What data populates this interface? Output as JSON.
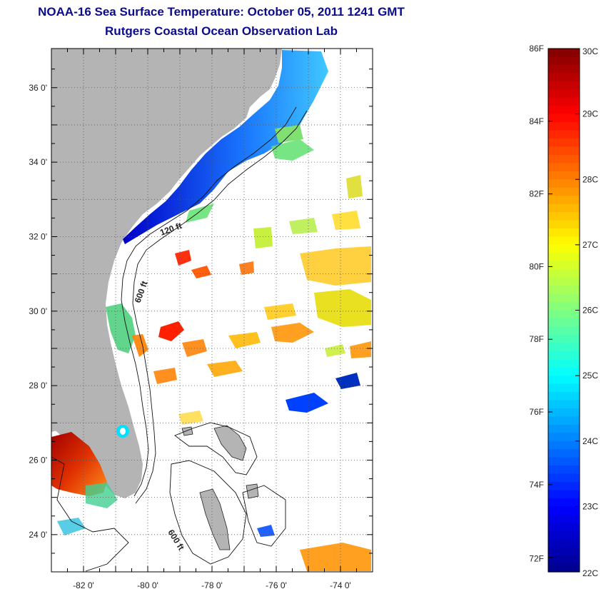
{
  "title": "NOAA-16 Sea Surface Temperature:  October 05, 2011 1241 GMT",
  "subtitle": "Rutgers Coastal Ocean Observation Lab",
  "map": {
    "lat_ticks": [
      "36 0'",
      "34 0'",
      "32 0'",
      "30 0'",
      "28 0'",
      "26 0'",
      "24 0'"
    ],
    "lon_ticks": [
      "-82 0'",
      "-80 0'",
      "-78 0'",
      "-76 0'",
      "-74 0'"
    ],
    "isobath_labels": [
      "120 ft",
      "600 ft",
      "600 ft"
    ],
    "colors": {
      "land": "#b4b4b4",
      "ocean": "#ffffff",
      "grid": "#555555"
    }
  },
  "colorbar": {
    "celsius_labels": [
      "30C",
      "29C",
      "28C",
      "27C",
      "26C",
      "25C",
      "24C",
      "23C",
      "22C"
    ],
    "fahrenheit_labels": [
      "86F",
      "84F",
      "82F",
      "80F",
      "78F",
      "76F",
      "74F",
      "72F"
    ],
    "range_c": [
      22,
      30
    ],
    "colors": [
      "#00008c",
      "#0000ff",
      "#0080ff",
      "#00ffff",
      "#80ff80",
      "#ffff00",
      "#ff8000",
      "#ff0000",
      "#800000"
    ]
  }
}
